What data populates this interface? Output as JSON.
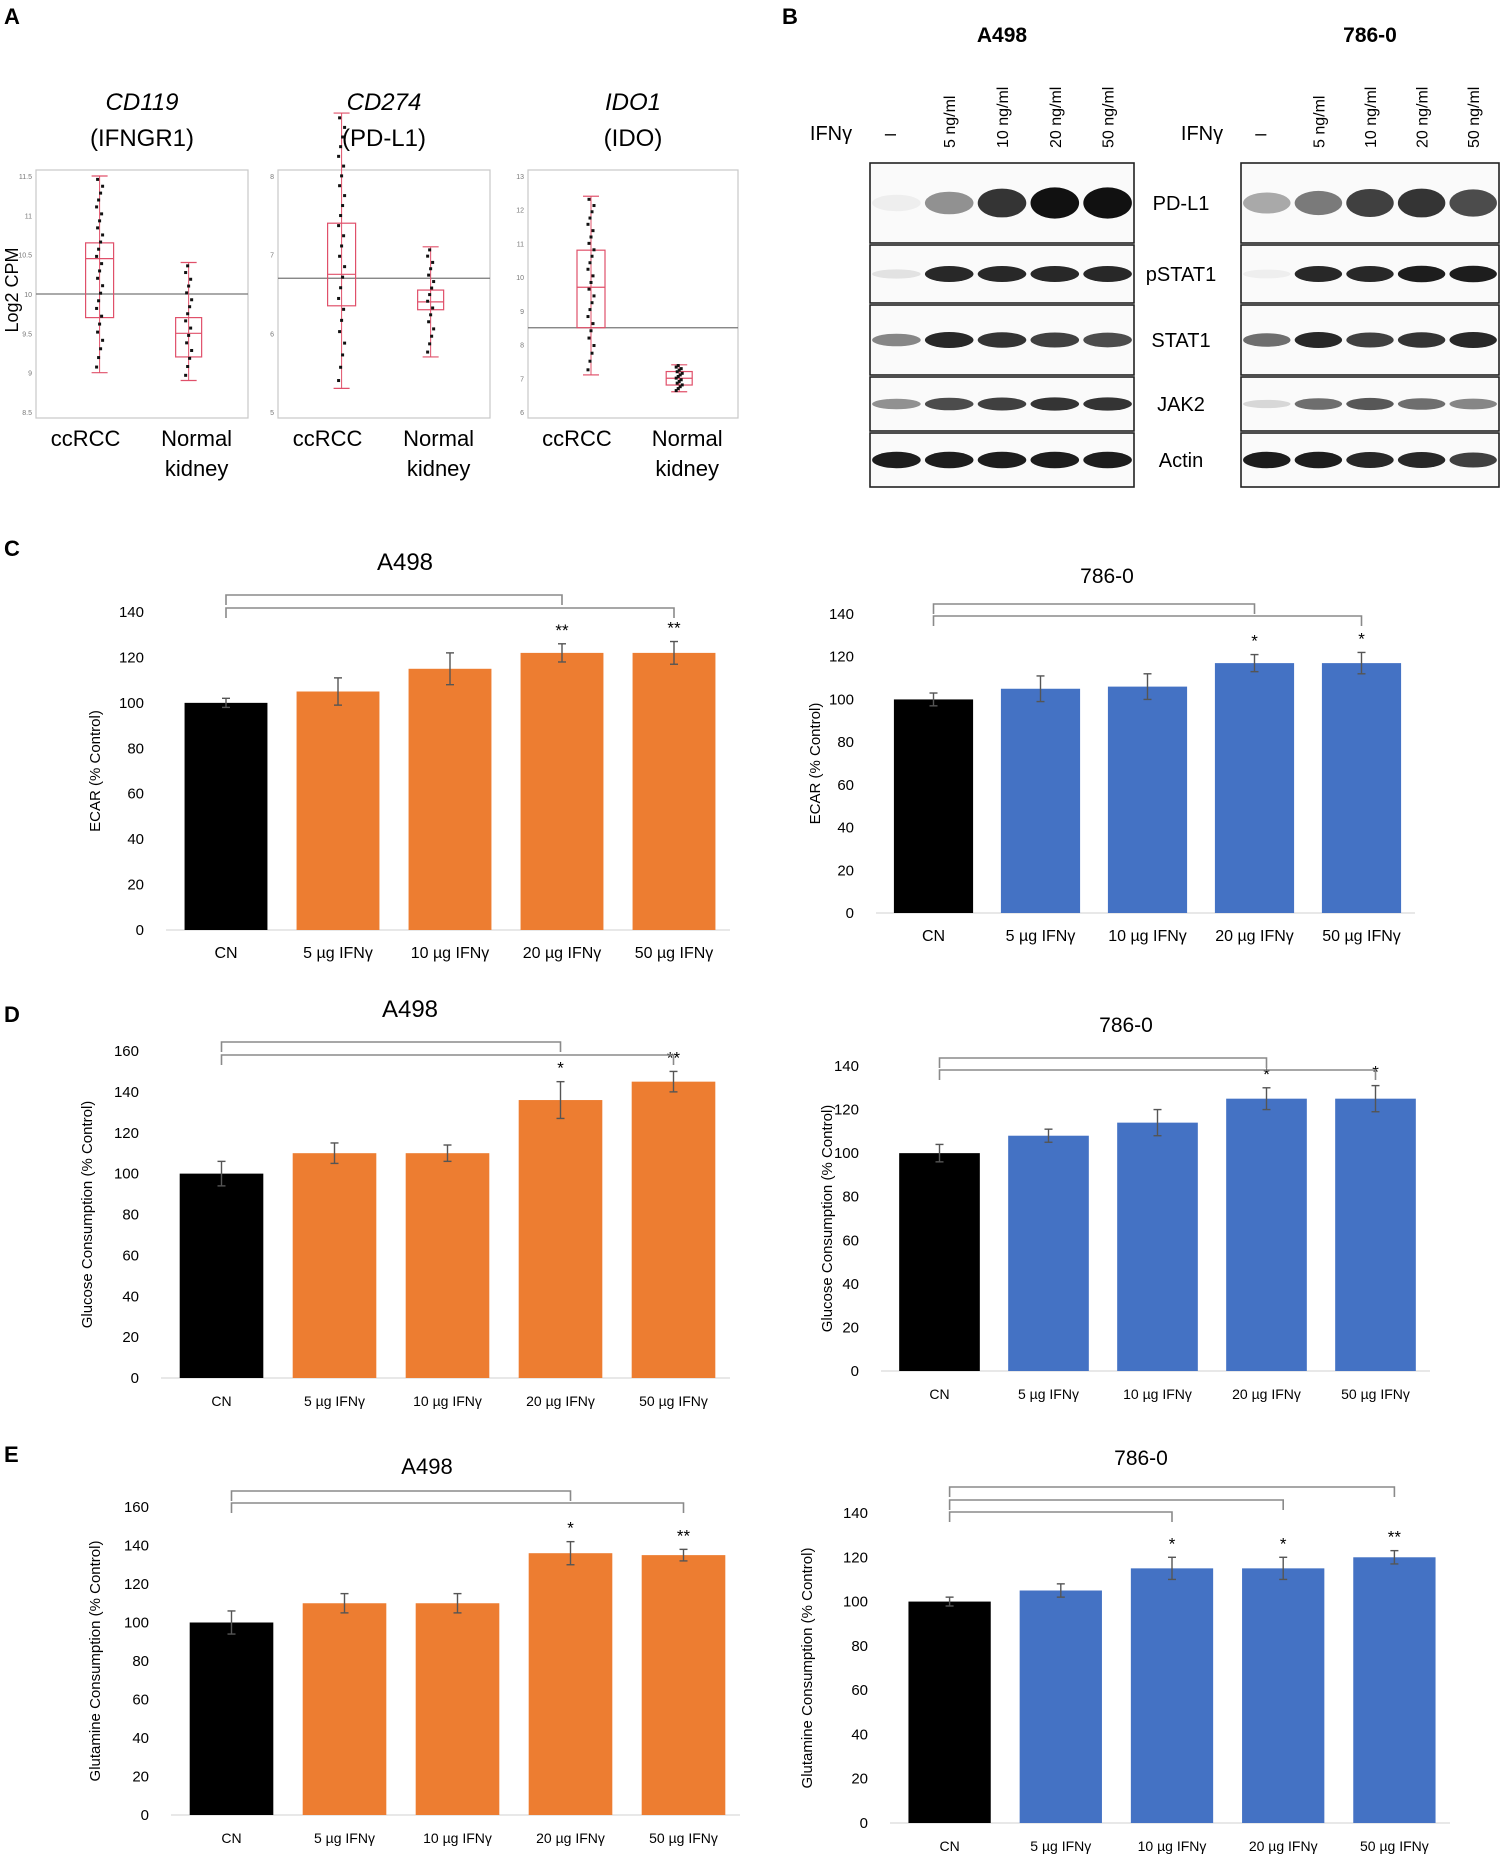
{
  "colors": {
    "black": "#000000",
    "orange": "#ED7D31",
    "blue": "#4472C4",
    "pink": "#E0506A",
    "gray": "#8A8A8A",
    "bg": "#ffffff"
  },
  "panel_labels": [
    "A",
    "B",
    "C",
    "D",
    "E"
  ],
  "panel_a": {
    "ylabel": "Log2 CPM",
    "plots": [
      {
        "title_italic": "CD119",
        "title_sub": "(IFNGR1)",
        "groups": [
          "ccRCC",
          "Normal\nkidney"
        ],
        "ticks": [
          "11.5",
          "11",
          "10.5",
          "10",
          "9.5",
          "9",
          "8.5"
        ],
        "hline": "10",
        "boxes": [
          {
            "min": 9.0,
            "q1": 9.7,
            "median": 10.45,
            "q3": 10.65,
            "max": 11.5
          },
          {
            "min": 8.9,
            "q1": 9.2,
            "median": 9.5,
            "q3": 9.7,
            "max": 10.4
          }
        ]
      },
      {
        "title_italic": "CD274",
        "title_sub": "(PD-L1)",
        "groups": [
          "ccRCC",
          "Normal\nkidney"
        ],
        "ticks": [
          "8",
          "7",
          "6",
          "5"
        ],
        "hline": "6.7",
        "boxes": [
          {
            "min": 5.3,
            "q1": 6.35,
            "median": 6.75,
            "q3": 7.4,
            "max": 8.8
          },
          {
            "min": 5.7,
            "q1": 6.3,
            "median": 6.4,
            "q3": 6.55,
            "max": 7.1
          }
        ]
      },
      {
        "title_italic": "IDO1",
        "title_sub": "(IDO)",
        "groups": [
          "ccRCC",
          "Normal\nkidney"
        ],
        "ticks": [
          "13",
          "12",
          "11",
          "10",
          "9",
          "8",
          "7",
          "6"
        ],
        "hline": "8.5",
        "boxes": [
          {
            "min": 7.1,
            "q1": 8.5,
            "median": 9.7,
            "q3": 10.8,
            "max": 12.4
          },
          {
            "min": 6.6,
            "q1": 6.8,
            "median": 7.0,
            "q3": 7.2,
            "max": 7.4
          }
        ]
      }
    ]
  },
  "panel_b": {
    "cell_lines": [
      "A498",
      "786-0"
    ],
    "treatment_label": "IFNγ",
    "lanes": [
      "–",
      "5 ng/ml",
      "10 ng/ml",
      "20 ng/ml",
      "50 ng/ml"
    ],
    "proteins": [
      "PD-L1",
      "pSTAT1",
      "STAT1",
      "JAK2",
      "Actin"
    ]
  },
  "chart_data": [
    {
      "id": "C-A498",
      "type": "bar",
      "title": "A498",
      "xlabel": "",
      "ylabel": "ECAR (% Control)",
      "ylim": [
        0,
        140
      ],
      "yticks": [
        "0",
        "20",
        "40",
        "60",
        "80",
        "100",
        "120",
        "140"
      ],
      "categories": [
        "CN",
        "5 µg IFNγ",
        "10 µg IFNγ",
        "20  µg IFNγ",
        "50 µg IFNγ"
      ],
      "values": [
        100,
        105,
        115,
        122,
        122
      ],
      "errors": [
        2,
        6,
        7,
        4,
        5
      ],
      "colors": [
        "#000000",
        "#ED7D31",
        "#ED7D31",
        "#ED7D31",
        "#ED7D31"
      ],
      "significance": [
        "",
        "",
        "",
        "**",
        "**"
      ]
    },
    {
      "id": "C-786",
      "type": "bar",
      "title": "786-0",
      "xlabel": "",
      "ylabel": "ECAR (% Control)",
      "ylim": [
        0,
        140
      ],
      "yticks": [
        "0",
        "20",
        "40",
        "60",
        "80",
        "100",
        "120",
        "140"
      ],
      "categories": [
        "CN",
        "5 µg IFNγ",
        "10 µg IFNγ",
        "20  µg IFNγ",
        "50 µg IFNγ"
      ],
      "values": [
        100,
        105,
        106,
        117,
        117
      ],
      "errors": [
        3,
        6,
        6,
        4,
        5
      ],
      "colors": [
        "#000000",
        "#4472C4",
        "#4472C4",
        "#4472C4",
        "#4472C4"
      ],
      "significance": [
        "",
        "",
        "",
        "*",
        "*"
      ]
    },
    {
      "id": "D-A498",
      "type": "bar",
      "title": "A498",
      "xlabel": "",
      "ylabel": "Glucose Consumption (% Control)",
      "ylim": [
        0,
        160
      ],
      "yticks": [
        "0",
        "20",
        "40",
        "60",
        "80",
        "100",
        "120",
        "140",
        "160"
      ],
      "categories": [
        "CN",
        "5 µg IFNγ",
        "10 µg IFNγ",
        "20 µg IFNγ",
        "50 µg IFNγ"
      ],
      "values": [
        100,
        110,
        110,
        136,
        145
      ],
      "errors": [
        6,
        5,
        4,
        9,
        5
      ],
      "colors": [
        "#000000",
        "#ED7D31",
        "#ED7D31",
        "#ED7D31",
        "#ED7D31"
      ],
      "significance": [
        "",
        "",
        "",
        "*",
        "**"
      ]
    },
    {
      "id": "D-786",
      "type": "bar",
      "title": "786-0",
      "xlabel": "",
      "ylabel": "Glucose Consumption (% Control)",
      "ylim": [
        0,
        140
      ],
      "yticks": [
        "0",
        "20",
        "40",
        "60",
        "80",
        "100",
        "120",
        "140"
      ],
      "categories": [
        "CN",
        "5 µg IFNγ",
        "10 µg IFNγ",
        "20 µg IFNγ",
        "50 µg IFNγ"
      ],
      "values": [
        100,
        108,
        114,
        125,
        125
      ],
      "errors": [
        4,
        3,
        6,
        5,
        6
      ],
      "colors": [
        "#000000",
        "#4472C4",
        "#4472C4",
        "#4472C4",
        "#4472C4"
      ],
      "significance": [
        "",
        "",
        "",
        "*",
        "*"
      ]
    },
    {
      "id": "E-A498",
      "type": "bar",
      "title": "A498",
      "xlabel": "",
      "ylabel": "Glutamine Consumption (% Control)",
      "ylim": [
        0,
        160
      ],
      "yticks": [
        "0",
        "20",
        "40",
        "60",
        "80",
        "100",
        "120",
        "140",
        "160"
      ],
      "categories": [
        "CN",
        "5 µg IFNγ",
        "10 µg IFNγ",
        "20 µg IFNγ",
        "50 µg IFNγ"
      ],
      "values": [
        100,
        110,
        110,
        136,
        135
      ],
      "errors": [
        6,
        5,
        5,
        6,
        3
      ],
      "colors": [
        "#000000",
        "#ED7D31",
        "#ED7D31",
        "#ED7D31",
        "#ED7D31"
      ],
      "significance": [
        "",
        "",
        "",
        "*",
        "**"
      ]
    },
    {
      "id": "E-786",
      "type": "bar",
      "title": "786-0",
      "xlabel": "",
      "ylabel": "Glutamine Consumption (% Control)",
      "ylim": [
        0,
        140
      ],
      "yticks": [
        "0",
        "20",
        "40",
        "60",
        "80",
        "100",
        "120",
        "140"
      ],
      "categories": [
        "CN",
        "5 µg IFNγ",
        "10 µg IFNγ",
        "20 µg IFNγ",
        "50 µg IFNγ"
      ],
      "values": [
        100,
        105,
        115,
        115,
        120
      ],
      "errors": [
        2,
        3,
        5,
        5,
        3
      ],
      "colors": [
        "#000000",
        "#4472C4",
        "#4472C4",
        "#4472C4",
        "#4472C4"
      ],
      "significance": [
        "",
        "",
        "*",
        "*",
        "**"
      ]
    }
  ]
}
